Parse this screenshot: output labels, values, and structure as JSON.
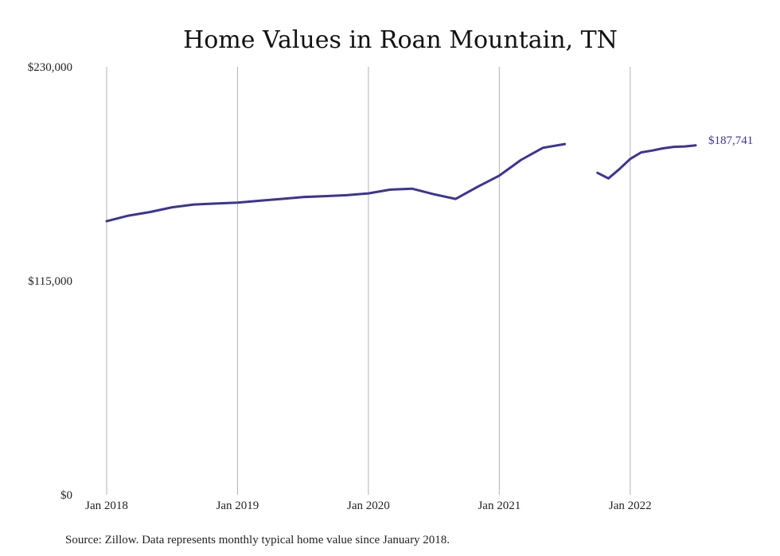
{
  "chart_data": {
    "type": "line",
    "title": "Home Values in Roan Mountain, TN",
    "xlabel": "",
    "ylabel": "",
    "ylim": [
      0,
      230000
    ],
    "y_ticks": [
      {
        "value": 0,
        "label": "$0"
      },
      {
        "value": 115000,
        "label": "$115,000"
      },
      {
        "value": 230000,
        "label": "$230,000"
      }
    ],
    "x_ticks": [
      {
        "x": "2018-01",
        "label": "Jan 2018"
      },
      {
        "x": "2019-01",
        "label": "Jan 2019"
      },
      {
        "x": "2020-01",
        "label": "Jan 2020"
      },
      {
        "x": "2021-01",
        "label": "Jan 2021"
      },
      {
        "x": "2022-01",
        "label": "Jan 2022"
      }
    ],
    "xlim": [
      "2018-01",
      "2022-07"
    ],
    "grid": "vertical",
    "legend": "none",
    "line_color": "#3a3596",
    "series": [
      {
        "name": "",
        "x": [
          "2018-01",
          "2018-03",
          "2018-05",
          "2018-07",
          "2018-09",
          "2018-11",
          "2019-01",
          "2019-03",
          "2019-05",
          "2019-07",
          "2019-09",
          "2019-11",
          "2020-01",
          "2020-03",
          "2020-05",
          "2020-07",
          "2020-09",
          "2020-11",
          "2021-01",
          "2021-03",
          "2021-05",
          "2021-07",
          "2021-08",
          "2021-09",
          "2021-10",
          "2021-11",
          "2021-12",
          "2022-01",
          "2022-02",
          "2022-03",
          "2022-04",
          "2022-05",
          "2022-06",
          "2022-07"
        ],
        "values": [
          147000,
          150000,
          152000,
          154500,
          156000,
          156500,
          157000,
          158000,
          159000,
          160000,
          160500,
          161000,
          162000,
          164000,
          164500,
          161500,
          159000,
          165500,
          171500,
          180000,
          186500,
          188500,
          null,
          null,
          173000,
          170000,
          175000,
          180500,
          184000,
          185000,
          186200,
          187000,
          187200,
          187741
        ]
      }
    ],
    "end_label": {
      "text": "$187,741",
      "x": "2022-07",
      "value": 187741
    },
    "source": "Source: Zillow. Data represents monthly typical home value since January 2018."
  }
}
